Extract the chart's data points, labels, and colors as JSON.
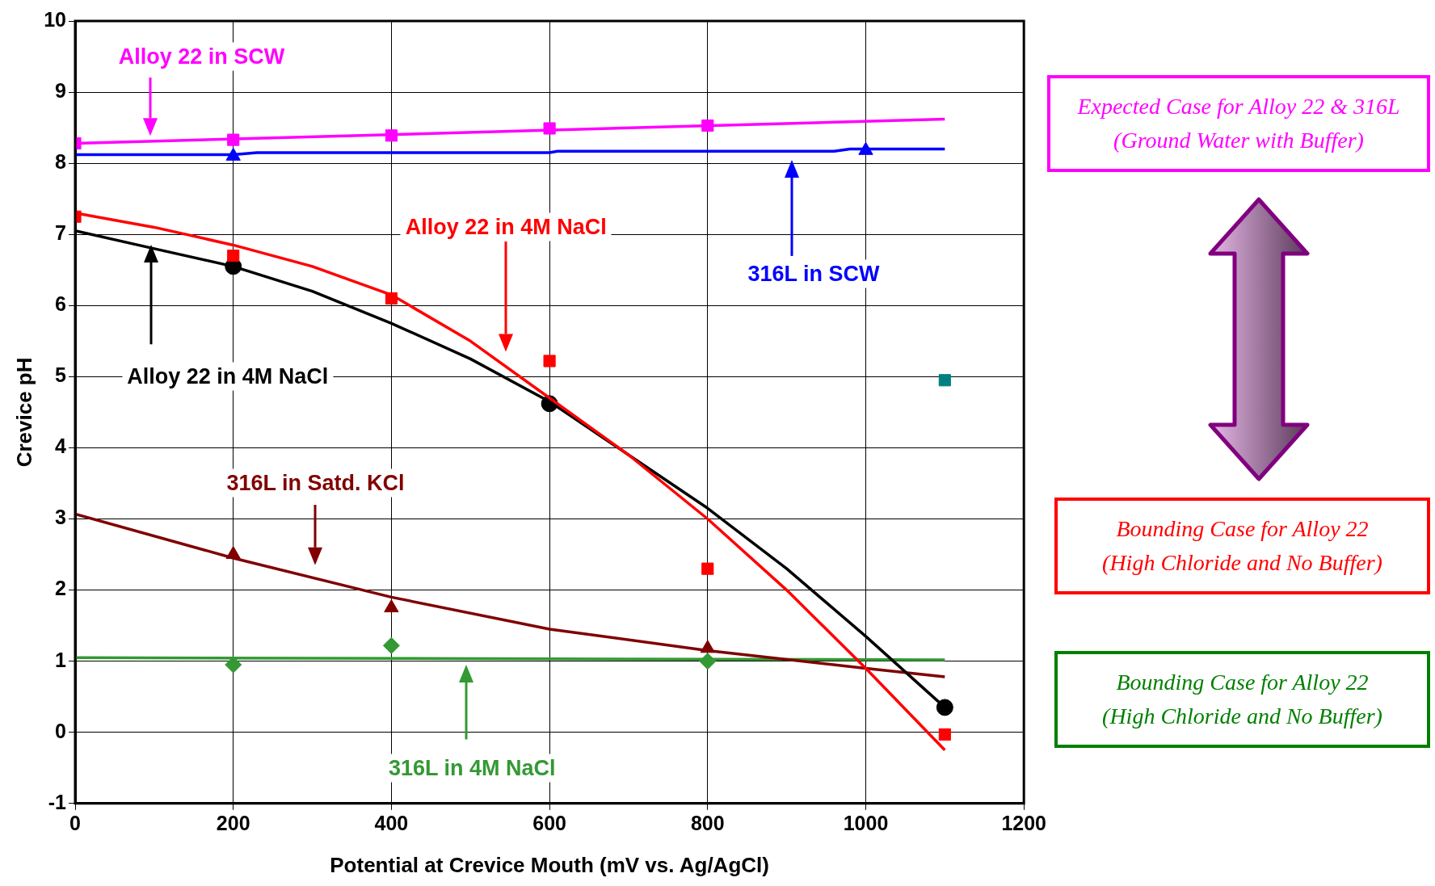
{
  "chart_data": {
    "type": "scatter",
    "xlabel": "Potential at Crevice Mouth (mV vs. Ag/AgCl)",
    "ylabel": "Crevice pH",
    "xlim": [
      0,
      1200
    ],
    "xticks": [
      0,
      200,
      400,
      600,
      800,
      1000,
      1200
    ],
    "ylim": [
      -1,
      10
    ],
    "yticks": [
      -1,
      0,
      1,
      2,
      3,
      4,
      5,
      6,
      7,
      8,
      9,
      10
    ],
    "grid": true,
    "legend": false,
    "series": [
      {
        "type": "line",
        "color": "#ff00ff",
        "marker": "none",
        "line_style": "solid",
        "x": [
          0,
          1100
        ],
        "values": [
          8.28,
          8.62
        ]
      },
      {
        "type": "line",
        "color": "#0000ff",
        "marker": "none",
        "line_style": "solid",
        "x": [
          0,
          200,
          230,
          600,
          610,
          960,
          980,
          1100
        ],
        "values": [
          8.12,
          8.12,
          8.15,
          8.15,
          8.17,
          8.17,
          8.2,
          8.2
        ]
      },
      {
        "type": "line",
        "color": "#ff0000",
        "marker": "none",
        "line_style": "solid",
        "x": [
          0,
          100,
          200,
          300,
          400,
          500,
          600,
          700,
          800,
          900,
          1000,
          1100
        ],
        "values": [
          7.3,
          7.1,
          6.85,
          6.55,
          6.15,
          5.5,
          4.7,
          3.9,
          3.0,
          2.0,
          0.9,
          -0.25
        ]
      },
      {
        "type": "line",
        "color": "#000000",
        "marker": "none",
        "line_style": "solid",
        "x": [
          0,
          100,
          200,
          300,
          400,
          500,
          600,
          700,
          800,
          900,
          1000,
          1100
        ],
        "values": [
          7.05,
          6.8,
          6.55,
          6.2,
          5.75,
          5.25,
          4.65,
          3.9,
          3.15,
          2.3,
          1.35,
          0.35
        ]
      },
      {
        "type": "line",
        "color": "#800000",
        "marker": "none",
        "line_style": "solid",
        "x": [
          0,
          200,
          400,
          600,
          800,
          1000,
          1100
        ],
        "values": [
          3.07,
          2.45,
          1.9,
          1.45,
          1.15,
          0.9,
          0.78
        ]
      },
      {
        "type": "line",
        "color": "#339933",
        "marker": "none",
        "line_style": "solid",
        "x": [
          0,
          1100
        ],
        "values": [
          1.05,
          1.02
        ]
      },
      {
        "type": "scatter",
        "color": "#ff00ff",
        "marker": "square",
        "x": [
          0,
          200,
          400,
          600,
          800
        ],
        "values": [
          8.28,
          8.33,
          8.39,
          8.49,
          8.53
        ]
      },
      {
        "type": "scatter",
        "color": "#0000ff",
        "marker": "triangle",
        "x": [
          200,
          1000
        ],
        "values": [
          8.1,
          8.18
        ]
      },
      {
        "type": "scatter",
        "color": "#ff0000",
        "marker": "square",
        "x": [
          0,
          200,
          400,
          600,
          800,
          1100
        ],
        "values": [
          7.25,
          6.7,
          6.1,
          5.22,
          2.3,
          -0.03
        ]
      },
      {
        "type": "scatter",
        "color": "#000000",
        "marker": "circle",
        "x": [
          200,
          600,
          1100
        ],
        "values": [
          6.55,
          4.62,
          0.35
        ]
      },
      {
        "type": "scatter",
        "color": "#800000",
        "marker": "triangle",
        "x": [
          200,
          400,
          800
        ],
        "values": [
          2.5,
          1.75,
          1.18
        ]
      },
      {
        "type": "scatter",
        "color": "#339933",
        "marker": "diamond",
        "x": [
          200,
          400,
          800
        ],
        "values": [
          0.95,
          1.22,
          1.0
        ]
      },
      {
        "color": "#008080",
        "marker": "square",
        "x": [
          1100
        ],
        "values": [
          4.95
        ]
      }
    ],
    "annotations": [
      "Alloy 22 in SCW",
      "316L in SCW",
      "Alloy 22 in 4M NaCl",
      "Alloy 22 in 4M NaCl",
      "316L in Satd. KCl",
      "316L in 4M NaCl",
      "Expected Case for Alloy 22 & 316L\n(Ground Water with Buffer)",
      "Bounding Case for Alloy 22\n(High Chloride and No Buffer)",
      "Bounding Case for Alloy 22\n(High Chloride and No Buffer)"
    ]
  }
}
